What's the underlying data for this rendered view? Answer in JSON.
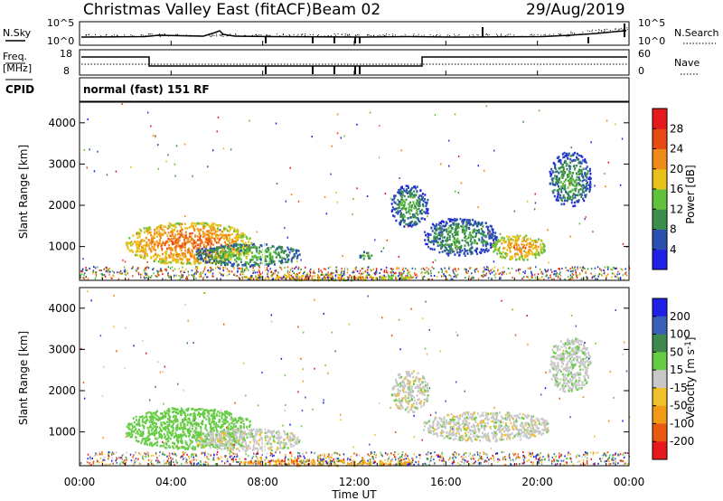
{
  "header": {
    "title": "Christmas Valley East (fitACF)",
    "beam": "Beam 02",
    "date": "29/Aug/2019"
  },
  "noise_panel": {
    "left_label": "N.Sky",
    "left_ticks": [
      "10^5",
      "10^0"
    ],
    "right_label": "N.Search",
    "right_ticks": [
      "10^5",
      "10^0"
    ]
  },
  "freq_panel": {
    "left_label_line1": "Freq.",
    "left_label_line2": "[MHz]",
    "left_ticks": [
      "18",
      "8"
    ],
    "right_label": "Nave",
    "right_ticks": [
      "60",
      "0"
    ],
    "cpid_label": "CPID",
    "cpid_text": "normal (fast) 151 RF"
  },
  "time_axis": {
    "label": "Time UT",
    "ticks": [
      "00:00",
      "04:00",
      "08:00",
      "12:00",
      "16:00",
      "20:00",
      "00:00"
    ]
  },
  "colors": {
    "power": [
      "#1f1fe6",
      "#2a4fb0",
      "#3b8f4a",
      "#5fc23a",
      "#e8c21a",
      "#f08a1a",
      "#e84a12",
      "#e61a1a"
    ],
    "velocity": [
      "#1f1fe6",
      "#3a5fb8",
      "#3e8a4e",
      "#66cc44",
      "#c8c8c8",
      "#f0c028",
      "#f09a18",
      "#e85a10",
      "#e61a1a"
    ]
  },
  "chart_data": [
    {
      "type": "heatmap",
      "title": "",
      "xlabel": "Time UT",
      "ylabel": "Slant Range [km]",
      "xlim": [
        "00:00",
        "24:00"
      ],
      "ylim": [
        180,
        4500
      ],
      "yticks": [
        "1000",
        "2000",
        "3000",
        "4000"
      ],
      "colorbar": {
        "label": "Power [dB]",
        "range": [
          0,
          32
        ],
        "ticks": [
          "4",
          "8",
          "12",
          "16",
          "20",
          "24",
          "28"
        ]
      },
      "regions": [
        {
          "t_start": 2.0,
          "t_end": 7.5,
          "r_start": 600,
          "r_end": 1600,
          "value_db": 24
        },
        {
          "t_start": 5.0,
          "t_end": 9.6,
          "r_start": 550,
          "r_end": 1100,
          "value_db": 14
        },
        {
          "t_start": 7.0,
          "t_end": 14.5,
          "r_start": 200,
          "r_end": 350,
          "value_db": 22
        },
        {
          "t_start": 12.2,
          "t_end": 12.8,
          "r_start": 700,
          "r_end": 900,
          "value_db": 14
        },
        {
          "t_start": 13.6,
          "t_end": 15.2,
          "r_start": 1500,
          "r_end": 2500,
          "value_db": 12
        },
        {
          "t_start": 15.0,
          "t_end": 18.2,
          "r_start": 800,
          "r_end": 1700,
          "value_db": 12
        },
        {
          "t_start": 18.0,
          "t_end": 20.3,
          "r_start": 700,
          "r_end": 1300,
          "value_db": 22
        },
        {
          "t_start": 20.5,
          "t_end": 22.3,
          "r_start": 2000,
          "r_end": 3300,
          "value_db": 12
        }
      ]
    },
    {
      "type": "heatmap",
      "title": "",
      "xlabel": "Time UT",
      "ylabel": "Slant Range [km]",
      "xlim": [
        "00:00",
        "24:00"
      ],
      "ylim": [
        180,
        4500
      ],
      "yticks": [
        "1000",
        "2000",
        "3000",
        "4000"
      ],
      "colorbar": {
        "label": "Velocity [m s-1]",
        "levels": [
          -200,
          -100,
          -50,
          -15,
          15,
          50,
          100,
          200
        ],
        "ticks": [
          "200",
          "100",
          "50",
          "15",
          "-15",
          "-50",
          "-100",
          "-200"
        ]
      },
      "regions": [
        {
          "t_start": 2.0,
          "t_end": 7.5,
          "r_start": 600,
          "r_end": 1600,
          "value_ms": 30
        },
        {
          "t_start": 5.0,
          "t_end": 9.6,
          "r_start": 550,
          "r_end": 1100,
          "value_ms": 0
        },
        {
          "t_start": 7.0,
          "t_end": 14.5,
          "r_start": 200,
          "r_end": 350,
          "value_ms": -60
        },
        {
          "t_start": 13.6,
          "t_end": 15.2,
          "r_start": 1500,
          "r_end": 2500,
          "value_ms": 0
        },
        {
          "t_start": 15.0,
          "t_end": 20.5,
          "r_start": 800,
          "r_end": 1500,
          "value_ms": 0
        },
        {
          "t_start": 20.5,
          "t_end": 22.3,
          "r_start": 2000,
          "r_end": 3300,
          "value_ms": 5
        }
      ]
    }
  ]
}
